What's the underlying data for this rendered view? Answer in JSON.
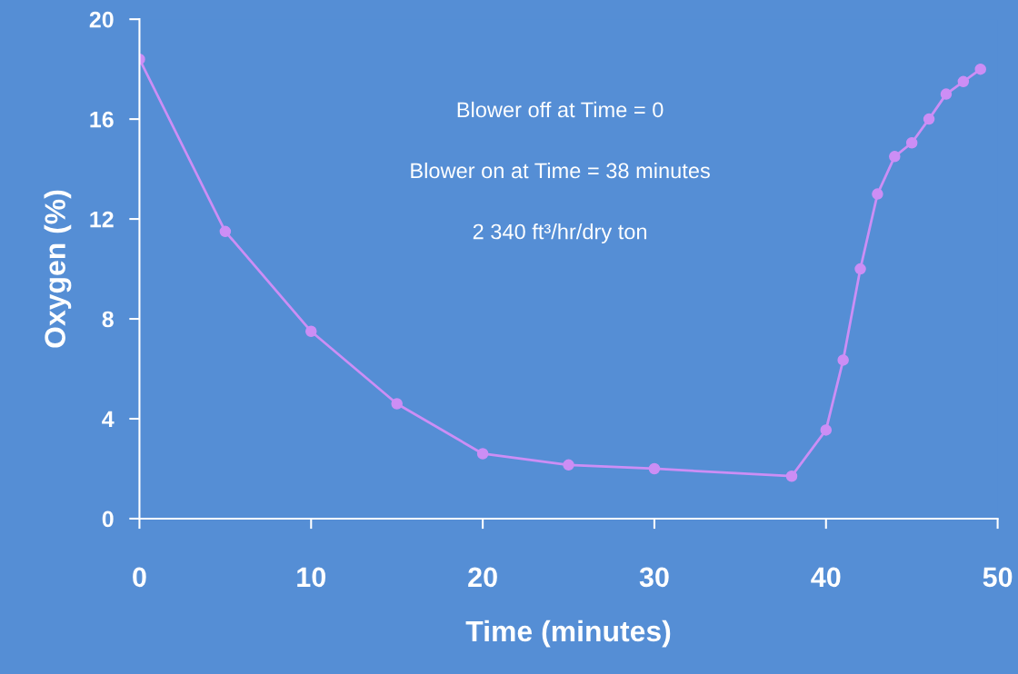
{
  "chart_data": {
    "type": "line",
    "xlabel": "Time (minutes)",
    "ylabel": "Oxygen (%)",
    "x": [
      0,
      5,
      10,
      15,
      20,
      25,
      30,
      38,
      40,
      41,
      42,
      43,
      44,
      45,
      46,
      47,
      48,
      49
    ],
    "series": [
      {
        "color": "#cc8ef5",
        "values": [
          18.4,
          11.5,
          7.5,
          4.6,
          2.6,
          2.15,
          2.0,
          1.7,
          3.55,
          6.35,
          10.0,
          13.0,
          14.5,
          15.05,
          16.0,
          17.0,
          17.5,
          18.0
        ]
      }
    ],
    "xlim": [
      0,
      50
    ],
    "xticks": [
      0,
      10,
      20,
      30,
      40,
      50
    ],
    "ylim": [
      0,
      20
    ],
    "yticks": [
      0,
      4,
      8,
      12,
      16,
      20
    ],
    "annotations": [
      "Blower off at Time = 0",
      "Blower on at Time = 38 minutes",
      "2 340 ft³/hr/dry ton"
    ],
    "marker": "circle",
    "line_style": "solid",
    "grid": false,
    "legend": false
  }
}
